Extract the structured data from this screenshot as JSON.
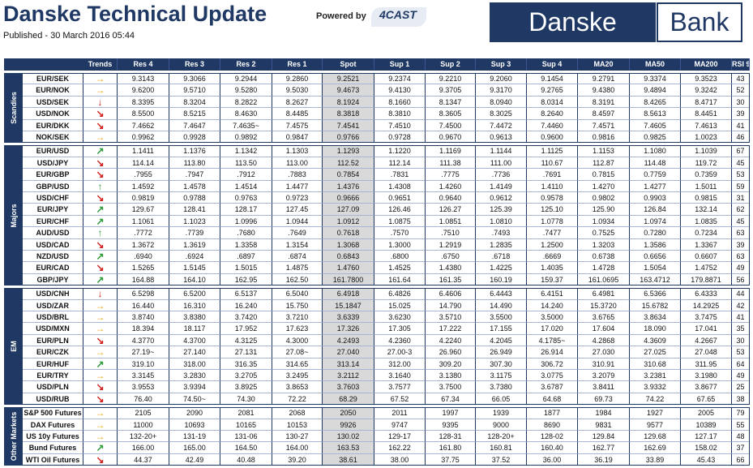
{
  "header": {
    "title": "Danske Technical Update",
    "published": "Published - 30 March 2016 05:44",
    "powered_by": "Powered by",
    "logo_4cast": "4CAST",
    "bank_name_1": "Danske",
    "bank_name_2": "Bank"
  },
  "table": {
    "columns": [
      "Trends",
      "Res 4",
      "Res 3",
      "Res 2",
      "Res 1",
      "Spot",
      "Sup 1",
      "Sup 2",
      "Sup 3",
      "Sup 4",
      "MA20",
      "MA50",
      "MA200",
      "RSI 9"
    ],
    "groups": [
      {
        "name": "Scandies",
        "rows": [
          {
            "instrument": "EUR/SEK",
            "trend": "→",
            "trend_color": "#f0a81c",
            "cells": [
              "9.3143",
              "9.3066",
              "9.2944",
              "9.2860",
              "9.2521",
              "9.2374",
              "9.2210",
              "9.2060",
              "9.1454",
              "9.2791",
              "9.3374",
              "9.3523",
              "43"
            ]
          },
          {
            "instrument": "EUR/NOK",
            "trend": "→",
            "trend_color": "#f0a81c",
            "cells": [
              "9.6200",
              "9.5710",
              "9.5280",
              "9.5030",
              "9.4673",
              "9.4130",
              "9.3705",
              "9.3170",
              "9.2765",
              "9.4380",
              "9.4894",
              "9.3242",
              "52"
            ]
          },
          {
            "instrument": "USD/SEK",
            "trend": "↓",
            "trend_color": "#d02020",
            "cells": [
              "8.3395",
              "8.3204",
              "8.2822",
              "8.2627",
              "8.1924",
              "8.1660",
              "8.1347",
              "8.0940",
              "8.0314",
              "8.3191",
              "8.4265",
              "8.4717",
              "30"
            ]
          },
          {
            "instrument": "USD/NOK",
            "trend": "↘",
            "trend_color": "#d02020",
            "cells": [
              "8.5500",
              "8.5215",
              "8.4630",
              "8.4485",
              "8.3818",
              "8.3810",
              "8.3605",
              "8.3025",
              "8.2640",
              "8.4597",
              "8.5613",
              "8.4451",
              "39"
            ]
          },
          {
            "instrument": "EUR/DKK",
            "trend": "↘",
            "trend_color": "#d02020",
            "cells": [
              "7.4662",
              "7.4647",
              "7.4635~",
              "7.4575",
              "7.4541",
              "7.4510",
              "7.4500",
              "7.4472",
              "7.4460",
              "7.4571",
              "7.4605",
              "7.4613",
              "41"
            ]
          },
          {
            "instrument": "NOK/SEK",
            "trend": "→",
            "trend_color": "#f0a81c",
            "cells": [
              "0.9962",
              "0.9928",
              "0.9892",
              "0.9847",
              "0.9766",
              "0.9728",
              "0.9670",
              "0.9613",
              "0.9600",
              "0.9816",
              "0.9825",
              "1.0023",
              "46"
            ]
          }
        ]
      },
      {
        "name": "Majors",
        "rows": [
          {
            "instrument": "EUR/USD",
            "trend": "↗",
            "trend_color": "#2e9a3a",
            "cells": [
              "1.1411",
              "1.1376",
              "1.1342",
              "1.1303",
              "1.1293",
              "1.1220",
              "1.1169",
              "1.1144",
              "1.1125",
              "1.1153",
              "1.1080",
              "1.1039",
              "67"
            ]
          },
          {
            "instrument": "USD/JPY",
            "trend": "↘",
            "trend_color": "#d02020",
            "cells": [
              "114.14",
              "113.80",
              "113.50",
              "113.00",
              "112.52",
              "112.14",
              "111.38",
              "111.00",
              "110.67",
              "112.87",
              "114.48",
              "119.72",
              "45"
            ]
          },
          {
            "instrument": "EUR/GBP",
            "trend": "↘",
            "trend_color": "#d02020",
            "cells": [
              ".7955",
              ".7947",
              ".7912",
              ".7883",
              "0.7854",
              ".7831",
              ".7775",
              ".7736",
              ".7691",
              "0.7815",
              "0.7759",
              "0.7359",
              "53"
            ]
          },
          {
            "instrument": "GBP/USD",
            "trend": "↑",
            "trend_color": "#2e9a3a",
            "cells": [
              "1.4592",
              "1.4578",
              "1.4514",
              "1.4477",
              "1.4376",
              "1.4308",
              "1.4260",
              "1.4149",
              "1.4110",
              "1.4270",
              "1.4277",
              "1.5011",
              "59"
            ]
          },
          {
            "instrument": "USD/CHF",
            "trend": "↘",
            "trend_color": "#d02020",
            "cells": [
              "0.9819",
              "0.9788",
              "0.9763",
              "0.9723",
              "0.9666",
              "0.9651",
              "0.9640",
              "0.9612",
              "0.9578",
              "0.9802",
              "0.9903",
              "0.9815",
              "31"
            ]
          },
          {
            "instrument": "EUR/JPY",
            "trend": "↗",
            "trend_color": "#2e9a3a",
            "cells": [
              "129.67",
              "128.41",
              "128.17",
              "127.45",
              "127.09",
              "126.46",
              "126.27",
              "125.39",
              "125.10",
              "125.90",
              "126.84",
              "132.14",
              "62"
            ]
          },
          {
            "instrument": "EUR/CHF",
            "trend": "↗",
            "trend_color": "#2e9a3a",
            "cells": [
              "1.1061",
              "1.1023",
              "1.0996",
              "1.0944",
              "1.0912",
              "1.0875",
              "1.0851",
              "1.0810",
              "1.0778",
              "1.0934",
              "1.0974",
              "1.0835",
              "45"
            ]
          },
          {
            "instrument": "AUD/USD",
            "trend": "↑",
            "trend_color": "#2e9a3a",
            "cells": [
              ".7772",
              ".7739",
              ".7680",
              ".7649",
              "0.7618",
              ".7570",
              ".7510",
              ".7493",
              ".7477",
              "0.7525",
              "0.7280",
              "0.7234",
              "63"
            ]
          },
          {
            "instrument": "USD/CAD",
            "trend": "↘",
            "trend_color": "#d02020",
            "cells": [
              "1.3672",
              "1.3619",
              "1.3358",
              "1.3154",
              "1.3068",
              "1.3000",
              "1.2919",
              "1.2835",
              "1.2500",
              "1.3203",
              "1.3586",
              "1.3367",
              "39"
            ]
          },
          {
            "instrument": "NZD/USD",
            "trend": "↗",
            "trend_color": "#2e9a3a",
            "cells": [
              ".6940",
              ".6924",
              ".6897",
              ".6874",
              "0.6843",
              ".6800",
              ".6750",
              ".6718",
              ".6669",
              "0.6738",
              "0.6656",
              "0.6607",
              "63"
            ]
          },
          {
            "instrument": "EUR/CAD",
            "trend": "↘",
            "trend_color": "#d02020",
            "cells": [
              "1.5265",
              "1.5145",
              "1.5015",
              "1.4875",
              "1.4760",
              "1.4525",
              "1.4380",
              "1.4225",
              "1.4035",
              "1.4728",
              "1.5054",
              "1.4752",
              "49"
            ]
          },
          {
            "instrument": "GBP/JPY",
            "trend": "↗",
            "trend_color": "#2e9a3a",
            "cells": [
              "164.88",
              "164.10",
              "162.95",
              "162.50",
              "161.7800",
              "161.64",
              "161.35",
              "160.19",
              "159.37",
              "161.0695",
              "163.4712",
              "179.8871",
              "56"
            ]
          }
        ]
      },
      {
        "name": "EM",
        "rows": [
          {
            "instrument": "USD/CNH",
            "trend": "↓",
            "trend_color": "#d02020",
            "cells": [
              "6.5298",
              "6.5200",
              "6.5137",
              "6.5040",
              "6.4918",
              "6.4826",
              "6.4606",
              "6.4443",
              "6.4151",
              "6.4981",
              "6.5366",
              "6.4333",
              "44"
            ]
          },
          {
            "instrument": "USD/ZAR",
            "trend": "→",
            "trend_color": "#f0a81c",
            "cells": [
              "16.440",
              "16.310",
              "16.240",
              "15.750",
              "15.1847",
              "15.025",
              "14.790",
              "14.490",
              "14.240",
              "15.3720",
              "15.6782",
              "14.2925",
              "42"
            ]
          },
          {
            "instrument": "USD/BRL",
            "trend": "→",
            "trend_color": "#f0a81c",
            "cells": [
              "3.8740",
              "3.8380",
              "3.7420",
              "3.7210",
              "3.6339",
              "3.6230",
              "3.5710",
              "3.5500",
              "3.5000",
              "3.6765",
              "3.8634",
              "3.7475",
              "41"
            ]
          },
          {
            "instrument": "USD/MXN",
            "trend": "→",
            "trend_color": "#f0a81c",
            "cells": [
              "18.394",
              "18.117",
              "17.952",
              "17.623",
              "17.326",
              "17.305",
              "17.222",
              "17.155",
              "17.020",
              "17.604",
              "18.090",
              "17.041",
              "35"
            ]
          },
          {
            "instrument": "EUR/PLN",
            "trend": "↘",
            "trend_color": "#d02020",
            "cells": [
              "4.3770",
              "4.3700",
              "4.3125",
              "4.3000",
              "4.2493",
              "4.2360",
              "4.2240",
              "4.2045",
              "4.1785~",
              "4.2868",
              "4.3609",
              "4.2667",
              "30"
            ]
          },
          {
            "instrument": "EUR/CZK",
            "trend": "→",
            "trend_color": "#f0a81c",
            "cells": [
              "27.19~",
              "27.140",
              "27.131",
              "27.08~",
              "27.040",
              "27.00-3",
              "26.960",
              "26.949",
              "26.914",
              "27.030",
              "27.025",
              "27.048",
              "53"
            ]
          },
          {
            "instrument": "EUR/HUF",
            "trend": "↗",
            "trend_color": "#2e9a3a",
            "cells": [
              "319.10",
              "318.00",
              "316.35",
              "314.65",
              "313.14",
              "312.00",
              "309.20",
              "307.30",
              "306.72",
              "310.91",
              "310.68",
              "311.95",
              "64"
            ]
          },
          {
            "instrument": "EUR/TRY",
            "trend": "→",
            "trend_color": "#f0a81c",
            "cells": [
              "3.3145",
              "3.2830",
              "3.2705",
              "3.2495",
              "3.2112",
              "3.1640",
              "3.1380",
              "3.1175",
              "3.0775",
              "3.2079",
              "3.2381",
              "3.1980",
              "49"
            ]
          },
          {
            "instrument": "USD/PLN",
            "trend": "↘",
            "trend_color": "#d02020",
            "cells": [
              "3.9553",
              "3.9394",
              "3.8925",
              "3.8653",
              "3.7603",
              "3.7577",
              "3.7500",
              "3.7380",
              "3.6787",
              "3.8411",
              "3.9332",
              "3.8677",
              "25"
            ]
          },
          {
            "instrument": "USD/RUB",
            "trend": "↘",
            "trend_color": "#d02020",
            "cells": [
              "76.40",
              "74.50~",
              "74.30",
              "72.22",
              "68.29",
              "67.52",
              "67.34",
              "66.05",
              "64.68",
              "69.73",
              "74.22",
              "67.65",
              "38"
            ]
          }
        ]
      },
      {
        "name": "Other Markets",
        "rows": [
          {
            "instrument": "S&P 500 Futures",
            "trend": "→",
            "trend_color": "#f0a81c",
            "cells": [
              "2105",
              "2090",
              "2081",
              "2068",
              "2050",
              "2011",
              "1997",
              "1939",
              "1877",
              "1984",
              "1927",
              "2005",
              "79"
            ]
          },
          {
            "instrument": "DAX Futures",
            "trend": "→",
            "trend_color": "#f0a81c",
            "cells": [
              "11000",
              "10693",
              "10165",
              "10153",
              "9926",
              "9747",
              "9395",
              "9000",
              "8690",
              "9831",
              "9577",
              "10389",
              "55"
            ]
          },
          {
            "instrument": "US 10y Futures",
            "trend": "→",
            "trend_color": "#f0a81c",
            "cells": [
              "132-20+",
              "131-19",
              "131-06",
              "130-27",
              "130.02",
              "129-17",
              "128-31",
              "128-20+",
              "128-02",
              "129.84",
              "129.68",
              "127.17",
              "48"
            ]
          },
          {
            "instrument": "Bund Futures",
            "trend": "↗",
            "trend_color": "#2e9a3a",
            "cells": [
              "166.00",
              "165.00",
              "164.50",
              "164.00",
              "163.53",
              "162.22",
              "161.80",
              "160.81",
              "160.40",
              "162.77",
              "162.69",
              "158.02",
              "37"
            ]
          },
          {
            "instrument": "WTI Oil Futures",
            "trend": "↘",
            "trend_color": "#d02020",
            "cells": [
              "44.37",
              "42.49",
              "40.48",
              "39.20",
              "38.61",
              "38.00",
              "37.75",
              "37.52",
              "36.00",
              "36.19",
              "33.89",
              "45.43",
              "66"
            ]
          }
        ]
      }
    ]
  }
}
